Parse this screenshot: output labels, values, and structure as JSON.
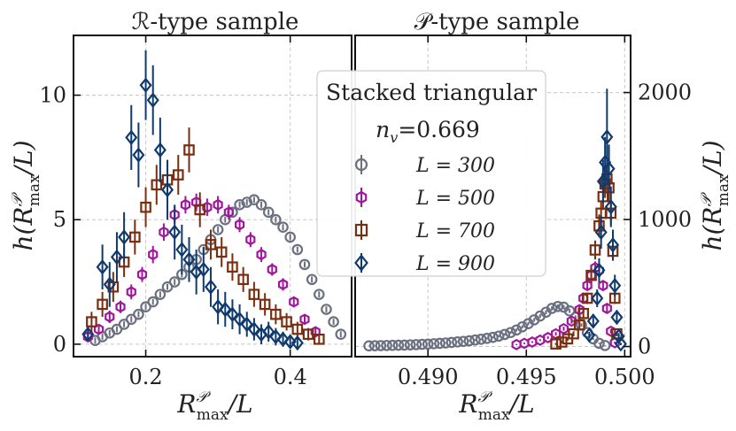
{
  "chart_data": [
    {
      "type": "scatter",
      "title": "ℛ-type sample",
      "xlabel_main": "R",
      "xlabel_sup": "𝒫",
      "xlabel_sub": "max",
      "xlabel_tail": "/L",
      "ylabel_main": "h(R",
      "ylabel_sup": "𝒫",
      "ylabel_sub": "max",
      "ylabel_tail": "/L)",
      "xlim": [
        0.1,
        0.485
      ],
      "ylim": [
        -0.5,
        12.4
      ],
      "xticks": [
        0.2,
        0.4
      ],
      "xtick_labels": [
        "0.2",
        "0.4"
      ],
      "yticks": [
        0,
        5,
        10
      ],
      "ytick_labels": [
        "0",
        "5",
        "10"
      ],
      "grid": true,
      "series": [
        {
          "name": "L = 300",
          "marker": "circle",
          "color": "#6b7080",
          "x": [
            0.13,
            0.14,
            0.15,
            0.16,
            0.17,
            0.18,
            0.19,
            0.2,
            0.21,
            0.22,
            0.23,
            0.24,
            0.25,
            0.26,
            0.27,
            0.28,
            0.29,
            0.3,
            0.31,
            0.32,
            0.33,
            0.34,
            0.35,
            0.36,
            0.37,
            0.38,
            0.39,
            0.4,
            0.41,
            0.42,
            0.43,
            0.44,
            0.45,
            0.46,
            0.47
          ],
          "y": [
            0.15,
            0.3,
            0.45,
            0.6,
            0.8,
            1.0,
            1.2,
            1.5,
            1.7,
            2.0,
            2.3,
            2.5,
            2.8,
            3.1,
            3.4,
            3.8,
            4.2,
            4.6,
            5.0,
            5.3,
            5.6,
            5.7,
            5.8,
            5.6,
            5.3,
            5.0,
            4.7,
            4.3,
            3.8,
            3.2,
            2.6,
            2.0,
            1.4,
            0.9,
            0.4
          ],
          "err": [
            0.12,
            0.12,
            0.12,
            0.12,
            0.12,
            0.12,
            0.12,
            0.12,
            0.12,
            0.12,
            0.12,
            0.12,
            0.12,
            0.12,
            0.12,
            0.12,
            0.12,
            0.12,
            0.12,
            0.12,
            0.12,
            0.12,
            0.12,
            0.12,
            0.12,
            0.12,
            0.12,
            0.12,
            0.12,
            0.12,
            0.12,
            0.12,
            0.12,
            0.12,
            0.12
          ]
        },
        {
          "name": "L = 500",
          "marker": "hexagon",
          "color": "#a0179c",
          "x": [
            0.12,
            0.135,
            0.15,
            0.165,
            0.18,
            0.195,
            0.21,
            0.225,
            0.24,
            0.255,
            0.27,
            0.285,
            0.3,
            0.315,
            0.33,
            0.345,
            0.36,
            0.375,
            0.39,
            0.405,
            0.42,
            0.435
          ],
          "y": [
            0.3,
            0.6,
            1.1,
            1.5,
            2.1,
            2.8,
            3.6,
            4.5,
            5.2,
            5.6,
            5.7,
            5.5,
            5.6,
            5.3,
            4.8,
            4.2,
            3.6,
            3.0,
            2.4,
            1.7,
            1.0,
            0.5
          ],
          "err": [
            0.2,
            0.2,
            0.25,
            0.25,
            0.3,
            0.3,
            0.35,
            0.35,
            0.35,
            0.35,
            0.35,
            0.35,
            0.35,
            0.3,
            0.3,
            0.3,
            0.3,
            0.25,
            0.25,
            0.2,
            0.2,
            0.15
          ]
        },
        {
          "name": "L = 700",
          "marker": "square",
          "color": "#7a2e10",
          "x": [
            0.125,
            0.14,
            0.155,
            0.17,
            0.185,
            0.2,
            0.215,
            0.23,
            0.245,
            0.26,
            0.275,
            0.29,
            0.305,
            0.32,
            0.335,
            0.35,
            0.365,
            0.38,
            0.395,
            0.41,
            0.425,
            0.44
          ],
          "y": [
            0.9,
            1.6,
            2.3,
            3.3,
            4.3,
            5.5,
            6.4,
            6.6,
            6.8,
            7.8,
            5.4,
            4.0,
            3.7,
            3.1,
            2.6,
            2.0,
            1.6,
            1.2,
            0.9,
            0.6,
            0.4,
            0.2
          ],
          "err": [
            0.4,
            0.5,
            0.6,
            0.6,
            0.7,
            0.8,
            0.8,
            0.8,
            0.8,
            0.9,
            0.7,
            0.6,
            0.6,
            0.55,
            0.5,
            0.5,
            0.45,
            0.4,
            0.35,
            0.3,
            0.25,
            0.2
          ]
        },
        {
          "name": "L = 900",
          "marker": "diamond",
          "color": "#0e3a6e",
          "x": [
            0.12,
            0.14,
            0.15,
            0.16,
            0.17,
            0.18,
            0.19,
            0.2,
            0.21,
            0.22,
            0.23,
            0.24,
            0.25,
            0.26,
            0.27,
            0.28,
            0.29,
            0.3,
            0.31,
            0.32,
            0.33,
            0.34,
            0.35,
            0.36,
            0.37,
            0.38,
            0.39,
            0.4,
            0.41
          ],
          "y": [
            0.4,
            3.1,
            2.4,
            3.5,
            4.3,
            8.3,
            7.6,
            10.4,
            9.8,
            7.8,
            6.2,
            4.5,
            3.8,
            3.4,
            2.9,
            3.0,
            2.3,
            1.5,
            1.4,
            1.2,
            1.0,
            0.8,
            0.6,
            0.4,
            0.5,
            0.3,
            0.2,
            0.1,
            0.05
          ],
          "err": [
            0.3,
            0.9,
            0.9,
            1.0,
            1.0,
            1.3,
            1.3,
            1.4,
            1.4,
            1.3,
            1.2,
            1.1,
            1.0,
            0.9,
            0.9,
            0.9,
            0.8,
            0.7,
            0.7,
            0.6,
            0.6,
            0.5,
            0.45,
            0.4,
            0.4,
            0.35,
            0.3,
            0.25,
            0.2
          ]
        }
      ]
    },
    {
      "type": "scatter",
      "title": "𝒫-type sample",
      "xlabel_main": "R",
      "xlabel_sup": "𝒫",
      "xlabel_sub": "max",
      "xlabel_tail": "/L",
      "ylabel_main": "h(R",
      "ylabel_sup": "𝒫",
      "ylabel_sub": "max",
      "ylabel_tail": "/L)",
      "xlim": [
        0.4863,
        0.5003
      ],
      "ylim": [
        -80,
        2450
      ],
      "xticks": [
        0.49,
        0.495,
        0.5
      ],
      "xtick_labels": [
        "0.490",
        "0.495",
        "0.500"
      ],
      "yticks": [
        0,
        1000,
        2000
      ],
      "ytick_labels": [
        "0",
        "1000",
        "2000"
      ],
      "grid": true,
      "series": [
        {
          "name": "L = 300",
          "marker": "circle",
          "color": "#6b7080",
          "x": [
            0.487,
            0.4873,
            0.4876,
            0.4879,
            0.4882,
            0.4885,
            0.4888,
            0.4891,
            0.4894,
            0.4897,
            0.49,
            0.4903,
            0.4906,
            0.4909,
            0.4912,
            0.4915,
            0.4918,
            0.4921,
            0.4924,
            0.4927,
            0.493,
            0.4933,
            0.4936,
            0.4939,
            0.4942,
            0.4945,
            0.4948,
            0.4951,
            0.4954,
            0.4957,
            0.496,
            0.4963,
            0.4966,
            0.4969,
            0.4972,
            0.4975,
            0.4978,
            0.4981,
            0.4984,
            0.4987,
            0.499
          ],
          "y": [
            5,
            6,
            7,
            8,
            9,
            10,
            11,
            13,
            15,
            17,
            19,
            22,
            25,
            28,
            32,
            36,
            40,
            45,
            51,
            57,
            64,
            72,
            82,
            95,
            110,
            130,
            155,
            180,
            210,
            240,
            270,
            300,
            315,
            310,
            280,
            230,
            170,
            110,
            60,
            25,
            8
          ],
          "err": [
            2,
            2,
            2,
            2,
            2,
            3,
            3,
            3,
            3,
            3,
            3,
            4,
            4,
            4,
            4,
            5,
            5,
            5,
            6,
            6,
            7,
            7,
            8,
            9,
            10,
            11,
            12,
            13,
            14,
            15,
            16,
            16,
            17,
            17,
            16,
            15,
            13,
            11,
            8,
            5,
            3
          ]
        },
        {
          "name": "L = 500",
          "marker": "hexagon",
          "color": "#a0179c",
          "x": [
            0.4945,
            0.4949,
            0.4953,
            0.4957,
            0.4961,
            0.4965,
            0.4969,
            0.4973,
            0.4977,
            0.4979,
            0.4981,
            0.4983,
            0.4985,
            0.4987,
            0.4989,
            0.4991,
            0.4993,
            0.4995
          ],
          "y": [
            15,
            25,
            35,
            50,
            70,
            100,
            140,
            200,
            290,
            380,
            480,
            560,
            620,
            600,
            480,
            300,
            120,
            30
          ],
          "err": [
            5,
            6,
            7,
            8,
            10,
            13,
            16,
            20,
            28,
            34,
            40,
            45,
            50,
            48,
            42,
            32,
            18,
            8
          ]
        },
        {
          "name": "L = 700",
          "marker": "square",
          "color": "#7a2e10",
          "x": [
            0.4965,
            0.4968,
            0.4971,
            0.4974,
            0.4977,
            0.4979,
            0.4981,
            0.4983,
            0.4985,
            0.4987,
            0.4988,
            0.4989,
            0.499,
            0.4991,
            0.4992,
            0.4993,
            0.4994,
            0.4995,
            0.4996
          ],
          "y": [
            20,
            35,
            60,
            100,
            170,
            260,
            380,
            560,
            760,
            950,
            1050,
            1180,
            1280,
            1320,
            1250,
            1050,
            750,
            380,
            100
          ],
          "err": [
            8,
            10,
            14,
            20,
            28,
            35,
            45,
            60,
            75,
            90,
            95,
            105,
            110,
            115,
            110,
            95,
            75,
            45,
            20
          ]
        },
        {
          "name": "L = 900",
          "marker": "diamond",
          "color": "#0e3a6e",
          "x": [
            0.4982,
            0.4984,
            0.4986,
            0.4987,
            0.4988,
            0.4989,
            0.499,
            0.4991,
            0.4992,
            0.4993,
            0.4994,
            0.4995,
            0.4996,
            0.4997,
            0.4998
          ],
          "y": [
            90,
            200,
            380,
            600,
            900,
            1300,
            1450,
            1650,
            1400,
            1100,
            800,
            480,
            230,
            80,
            20
          ],
          "err": [
            25,
            45,
            70,
            95,
            130,
            170,
            200,
            380,
            190,
            160,
            120,
            85,
            55,
            25,
            10
          ]
        }
      ]
    }
  ],
  "legend": {
    "title_line1": "Stacked triangular",
    "title_line2_main": "n",
    "title_line2_sub": "v",
    "title_line2_tail": "=0.669",
    "entries": [
      "L = 300",
      "L = 500",
      "L = 700",
      "L = 900"
    ]
  }
}
